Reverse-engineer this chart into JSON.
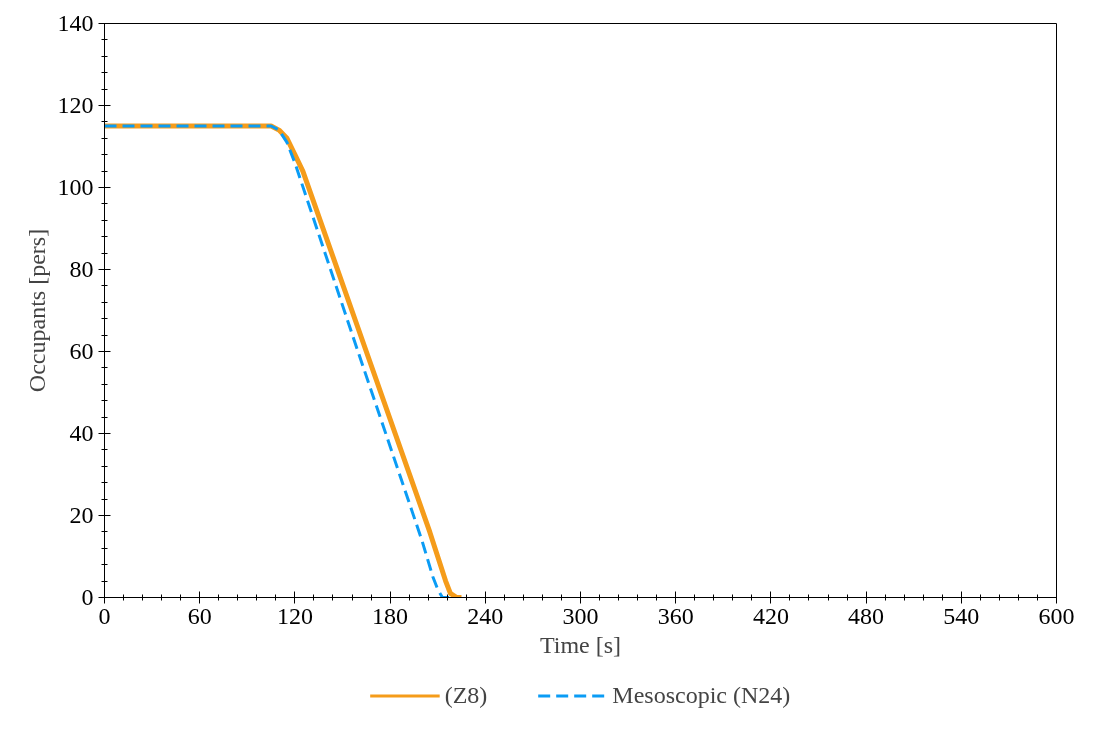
{
  "chart_data": {
    "type": "line",
    "xlabel": "Time [s]",
    "ylabel": "Occupants [pers]",
    "xlim": [
      0,
      600
    ],
    "xticks": [
      0,
      60,
      120,
      180,
      240,
      300,
      360,
      420,
      480,
      540,
      600
    ],
    "ylim": [
      0,
      140
    ],
    "yticks": [
      0,
      20,
      40,
      60,
      80,
      100,
      120,
      140
    ],
    "grid": false,
    "legend": "bottom",
    "marker": "none",
    "series": [
      {
        "name": "(Z8)",
        "color": "#f59c1a",
        "line_style": "solid",
        "x": [
          0,
          100,
          105,
          110,
          115,
          120,
          125,
          165,
          205,
          215,
          218,
          222,
          225
        ],
        "values": [
          115,
          115,
          115,
          114,
          112,
          108,
          104,
          60,
          16,
          4,
          1,
          0,
          0
        ]
      },
      {
        "name": "Mesoscopic (N24)",
        "color": "#0a9cf5",
        "line_style": "dashed",
        "x": [
          0,
          105,
          110,
          115,
          120,
          158,
          200,
          207,
          210,
          213,
          220
        ],
        "values": [
          115,
          115,
          114,
          111,
          106,
          62,
          14,
          5,
          2,
          0,
          0
        ]
      }
    ]
  }
}
